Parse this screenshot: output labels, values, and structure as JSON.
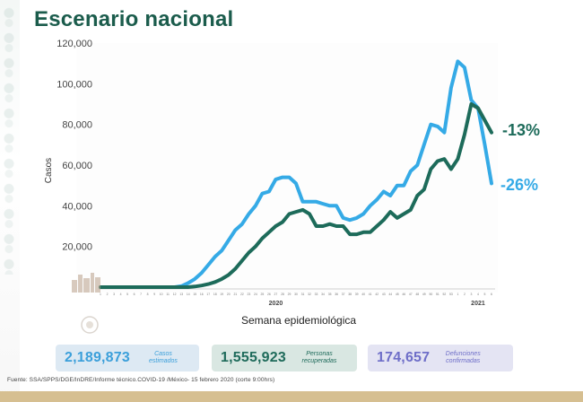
{
  "page": {
    "title": "Escenario nacional"
  },
  "chart_data": {
    "type": "line",
    "title": "",
    "xlabel": "Semana epidemiológica",
    "ylabel": "Casos",
    "ylim": [
      0,
      120000
    ],
    "yticks": [
      20000,
      40000,
      60000,
      80000,
      100000,
      120000
    ],
    "ytick_labels": [
      "20,000",
      "40,000",
      "60,000",
      "80,000",
      "100,000",
      "120,000"
    ],
    "x_group_labels": [
      "2020",
      "2021"
    ],
    "x": [
      1,
      2,
      3,
      4,
      5,
      6,
      7,
      8,
      9,
      10,
      11,
      12,
      13,
      14,
      15,
      16,
      17,
      18,
      19,
      20,
      21,
      22,
      23,
      24,
      25,
      26,
      27,
      28,
      29,
      30,
      31,
      32,
      33,
      34,
      35,
      36,
      37,
      38,
      39,
      40,
      41,
      42,
      43,
      44,
      45,
      46,
      47,
      48,
      49,
      50,
      51,
      52,
      53,
      1,
      2,
      3,
      4,
      5,
      6
    ],
    "grid": false,
    "legend": "none",
    "series": [
      {
        "color": "#35aae6",
        "end_label": "-26%",
        "values": [
          0,
          0,
          0,
          0,
          0,
          0,
          0,
          0,
          0,
          0,
          0,
          0,
          500,
          2000,
          4000,
          7000,
          11000,
          15000,
          18000,
          23000,
          28000,
          31000,
          36000,
          40000,
          46000,
          47000,
          53000,
          54000,
          54000,
          51000,
          42000,
          42000,
          42000,
          41000,
          40000,
          40000,
          34000,
          33000,
          34000,
          36000,
          40000,
          43000,
          47000,
          45000,
          50000,
          50000,
          57000,
          60000,
          70000,
          80000,
          79000,
          76000,
          98000,
          111000,
          108000,
          92000,
          88000,
          70000,
          51000
        ]
      },
      {
        "color": "#1d6b5a",
        "end_label": "-13%",
        "values": [
          0,
          0,
          0,
          0,
          0,
          0,
          0,
          0,
          0,
          0,
          0,
          0,
          0,
          0,
          300,
          800,
          1500,
          2500,
          4000,
          6000,
          9000,
          13000,
          17000,
          20000,
          24000,
          27000,
          30000,
          32000,
          36000,
          37000,
          38000,
          36000,
          30000,
          30000,
          31000,
          30000,
          30000,
          26000,
          26000,
          27000,
          27000,
          30000,
          33000,
          37000,
          34000,
          36000,
          38000,
          45000,
          48000,
          58000,
          62000,
          63000,
          58000,
          63000,
          75000,
          90000,
          88000,
          82000,
          76000
        ]
      }
    ]
  },
  "summary": {
    "casos_value": "2,189,873",
    "casos_label": "Casos estimados",
    "recuperadas_value": "1,555,923",
    "recuperadas_label": "Personas recuperadas",
    "defunciones_value": "174,657",
    "defunciones_label": "Defunciones confirmadas"
  },
  "footer": {
    "source": "Fuente: SSA/SPPS/DGE/InDRE/Informe técnico.COVID-19 /México- 15 febrero 2020 (corte 9:00hrs)"
  }
}
